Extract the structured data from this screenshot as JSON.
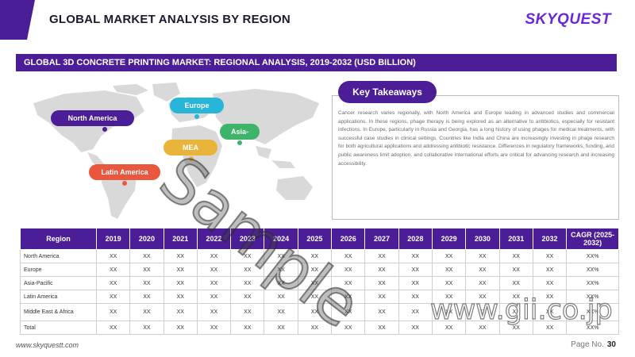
{
  "header": {
    "title": "GLOBAL MARKET ANALYSIS BY REGION",
    "brand": "SKYQUEST"
  },
  "section": {
    "title": "GLOBAL 3D CONCRETE PRINTING MARKET: REGIONAL ANALYSIS, 2019-2032 (USD BILLION)"
  },
  "map": {
    "labels": {
      "north_america": "North America",
      "europe": "Europe",
      "asia_pacific": "Asia-Pacific",
      "mea": "MEA",
      "latin_america": "Latin America"
    },
    "colors": {
      "north_america": "#4b1d96",
      "europe": "#27b6d8",
      "asia_pacific": "#3eb36a",
      "mea": "#e8b43a",
      "latin_america": "#e9573e"
    }
  },
  "takeaways": {
    "heading": "Key Takeaways",
    "text": "Cancer research varies regionally, with North America and Europe leading in advanced studies and commercial applications. In these regions, phage therapy is being explored as an alternative to antibiotics, especially for resistant infections. In Europe, particularly in Russia and Georgia, has a long history of using phages for medical treatments, with successful case studies in clinical settings. Countries like India and China are increasingly investing in phage research for both agricultural applications and addressing antibiotic resistance. Differences in regulatory frameworks, funding, and public awareness limit adoption, and collaborative international efforts are critical for advancing research and increasing accessibility."
  },
  "table": {
    "headers": [
      "Region",
      "2019",
      "2020",
      "2021",
      "2022",
      "2023",
      "2024",
      "2025",
      "2026",
      "2027",
      "2028",
      "2029",
      "2030",
      "2031",
      "2032",
      "CAGR (2025-2032)"
    ],
    "rows": [
      [
        "North America",
        "XX",
        "XX",
        "XX",
        "XX",
        "XX",
        "XX",
        "XX",
        "XX",
        "XX",
        "XX",
        "XX",
        "XX",
        "XX",
        "XX",
        "XX%"
      ],
      [
        "Europe",
        "XX",
        "XX",
        "XX",
        "XX",
        "XX",
        "XX",
        "XX",
        "XX",
        "XX",
        "XX",
        "XX",
        "XX",
        "XX",
        "XX",
        "XX%"
      ],
      [
        "Asia-Pacific",
        "XX",
        "XX",
        "XX",
        "XX",
        "XX",
        "XX",
        "XX",
        "XX",
        "XX",
        "XX",
        "XX",
        "XX",
        "XX",
        "XX",
        "XX%"
      ],
      [
        "Latin America",
        "XX",
        "XX",
        "XX",
        "XX",
        "XX",
        "XX",
        "XX",
        "XX",
        "XX",
        "XX",
        "XX",
        "XX",
        "XX",
        "XX",
        "XX%"
      ],
      [
        "Middle East & Africa",
        "XX",
        "XX",
        "XX",
        "XX",
        "XX",
        "XX",
        "XX",
        "XX",
        "XX",
        "XX",
        "XX",
        "XX",
        "XX",
        "XX",
        "XX%"
      ],
      [
        "Total",
        "XX",
        "XX",
        "XX",
        "XX",
        "XX",
        "XX",
        "XX",
        "XX",
        "XX",
        "XX",
        "XX",
        "XX",
        "XX",
        "XX",
        "XX%"
      ]
    ]
  },
  "footer": {
    "url": "www.skyquestt.com",
    "page_label": "Page No.",
    "page_number": "30"
  },
  "watermarks": {
    "sample": "Sample",
    "gii": "www.gii.co.jp"
  }
}
